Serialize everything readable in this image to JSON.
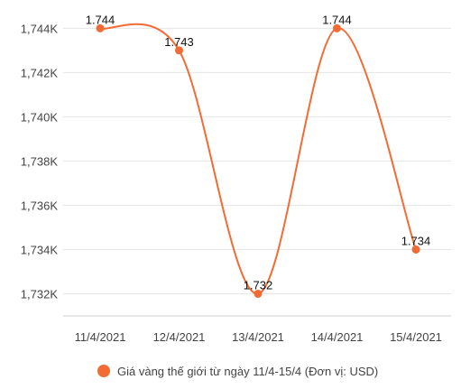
{
  "chart_data": {
    "type": "line",
    "categories": [
      "11/4/2021",
      "12/4/2021",
      "13/4/2021",
      "14/4/2021",
      "15/4/2021"
    ],
    "series": [
      {
        "name": "Giá vàng thế giới từ ngày 11/4-15/4 (Đơn vị: USD)",
        "values": [
          1744,
          1743,
          1732,
          1744,
          1734
        ],
        "data_labels": [
          "1.744",
          "1.743",
          "1.732",
          "1.744",
          "1.734"
        ]
      }
    ],
    "y_ticks": [
      {
        "value": 1732,
        "label": "1,732K"
      },
      {
        "value": 1734,
        "label": "1,734K"
      },
      {
        "value": 1736,
        "label": "1,736K"
      },
      {
        "value": 1738,
        "label": "1,738K"
      },
      {
        "value": 1740,
        "label": "1,740K"
      },
      {
        "value": 1742,
        "label": "1,742K"
      },
      {
        "value": 1744,
        "label": "1,744K"
      }
    ],
    "ylim": [
      1731,
      1744.3
    ],
    "grid": true,
    "smooth": true,
    "legend_position": "bottom",
    "colors": {
      "series": "#f26b35",
      "grid": "#e6e6e6",
      "axis_text": "#444444"
    }
  }
}
